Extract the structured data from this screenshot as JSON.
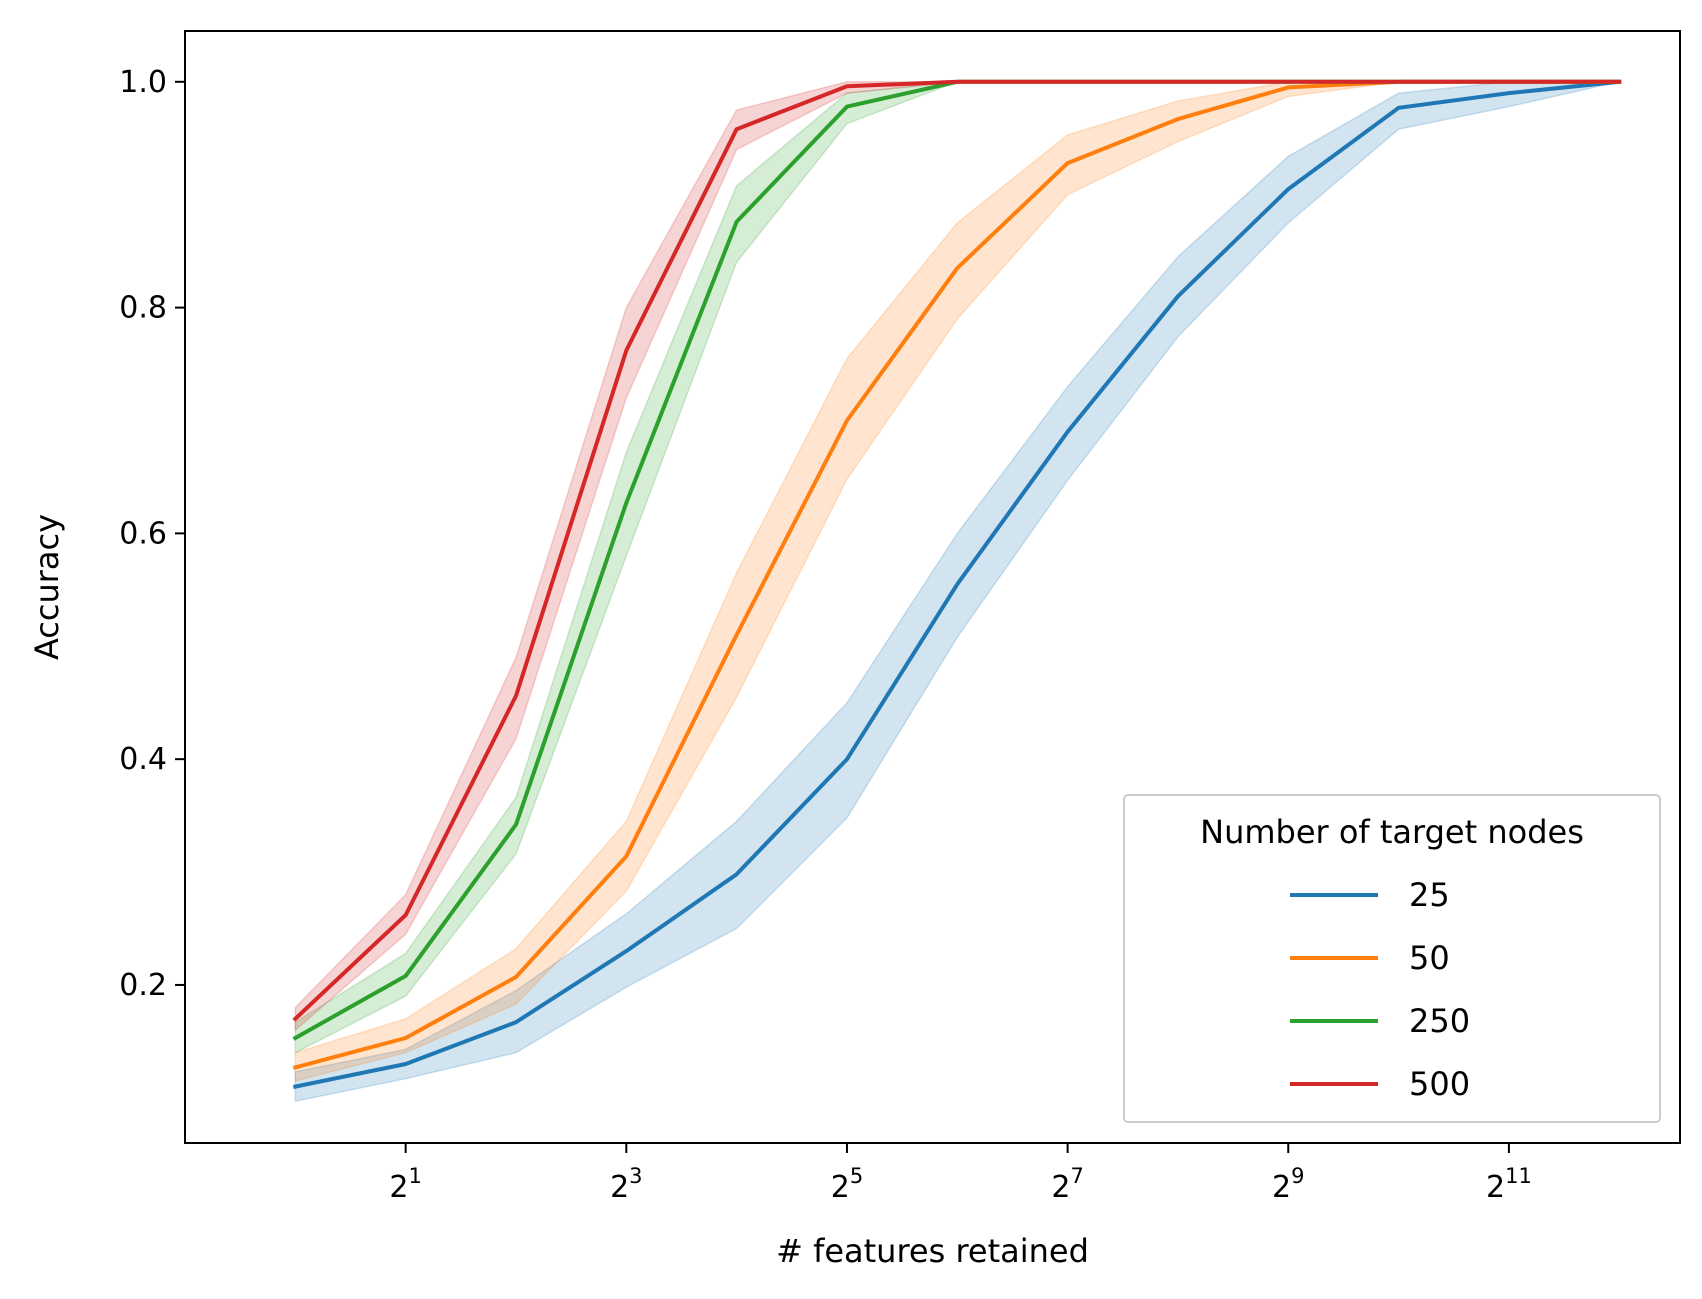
{
  "chart_data": {
    "type": "line",
    "title": "",
    "xlabel": "# features retained",
    "ylabel": "Accuracy",
    "x_scale": "log2",
    "x": [
      1,
      2,
      4,
      8,
      16,
      32,
      64,
      128,
      256,
      512,
      1024,
      2048,
      4096
    ],
    "xlim": [
      0.5,
      6000
    ],
    "ylim": [
      0.06,
      1.045
    ],
    "x_ticks": [
      {
        "value": 2,
        "base": "2",
        "exp": "1"
      },
      {
        "value": 8,
        "base": "2",
        "exp": "3"
      },
      {
        "value": 32,
        "base": "2",
        "exp": "5"
      },
      {
        "value": 128,
        "base": "2",
        "exp": "7"
      },
      {
        "value": 512,
        "base": "2",
        "exp": "9"
      },
      {
        "value": 2048,
        "base": "2",
        "exp": "11"
      }
    ],
    "y_ticks": [
      {
        "value": 0.2,
        "label": "0.2"
      },
      {
        "value": 0.4,
        "label": "0.4"
      },
      {
        "value": 0.6,
        "label": "0.6"
      },
      {
        "value": 0.8,
        "label": "0.8"
      },
      {
        "value": 1.0,
        "label": "1.0"
      }
    ],
    "grid": false,
    "legend": {
      "title": "Number of target nodes",
      "position": "bottom-right"
    },
    "series": [
      {
        "name": "25",
        "color": "#1f77b4",
        "values": [
          0.11,
          0.13,
          0.167,
          0.23,
          0.298,
          0.4,
          0.555,
          0.69,
          0.81,
          0.905,
          0.977,
          0.99,
          1.0
        ],
        "lower": [
          0.097,
          0.117,
          0.14,
          0.198,
          0.25,
          0.348,
          0.508,
          0.647,
          0.774,
          0.875,
          0.958,
          0.978,
          1.0
        ],
        "upper": [
          0.123,
          0.143,
          0.195,
          0.263,
          0.345,
          0.45,
          0.6,
          0.73,
          0.845,
          0.934,
          0.99,
          1.0,
          1.0
        ]
      },
      {
        "name": "50",
        "color": "#ff7f0e",
        "values": [
          0.127,
          0.153,
          0.207,
          0.314,
          0.51,
          0.7,
          0.835,
          0.928,
          0.967,
          0.995,
          1.0,
          1.0,
          1.0
        ],
        "lower": [
          0.115,
          0.14,
          0.183,
          0.283,
          0.455,
          0.648,
          0.79,
          0.9,
          0.947,
          0.987,
          1.0,
          1.0,
          1.0
        ],
        "upper": [
          0.14,
          0.17,
          0.232,
          0.345,
          0.565,
          0.755,
          0.875,
          0.953,
          0.983,
          1.0,
          1.0,
          1.0,
          1.0
        ]
      },
      {
        "name": "250",
        "color": "#2ca02c",
        "values": [
          0.153,
          0.208,
          0.342,
          0.627,
          0.876,
          0.978,
          1.0,
          1.0,
          1.0,
          1.0,
          1.0,
          1.0,
          1.0
        ],
        "lower": [
          0.14,
          0.19,
          0.316,
          0.58,
          0.84,
          0.963,
          1.0,
          1.0,
          1.0,
          1.0,
          1.0,
          1.0,
          1.0
        ],
        "upper": [
          0.167,
          0.228,
          0.366,
          0.672,
          0.908,
          0.99,
          1.0,
          1.0,
          1.0,
          1.0,
          1.0,
          1.0,
          1.0
        ]
      },
      {
        "name": "500",
        "color": "#d62728",
        "values": [
          0.17,
          0.262,
          0.456,
          0.762,
          0.958,
          0.996,
          1.0,
          1.0,
          1.0,
          1.0,
          1.0,
          1.0,
          1.0
        ],
        "lower": [
          0.16,
          0.245,
          0.418,
          0.72,
          0.94,
          0.99,
          1.0,
          1.0,
          1.0,
          1.0,
          1.0,
          1.0,
          1.0
        ],
        "upper": [
          0.18,
          0.28,
          0.49,
          0.8,
          0.975,
          1.0,
          1.0,
          1.0,
          1.0,
          1.0,
          1.0,
          1.0,
          1.0
        ]
      }
    ]
  }
}
